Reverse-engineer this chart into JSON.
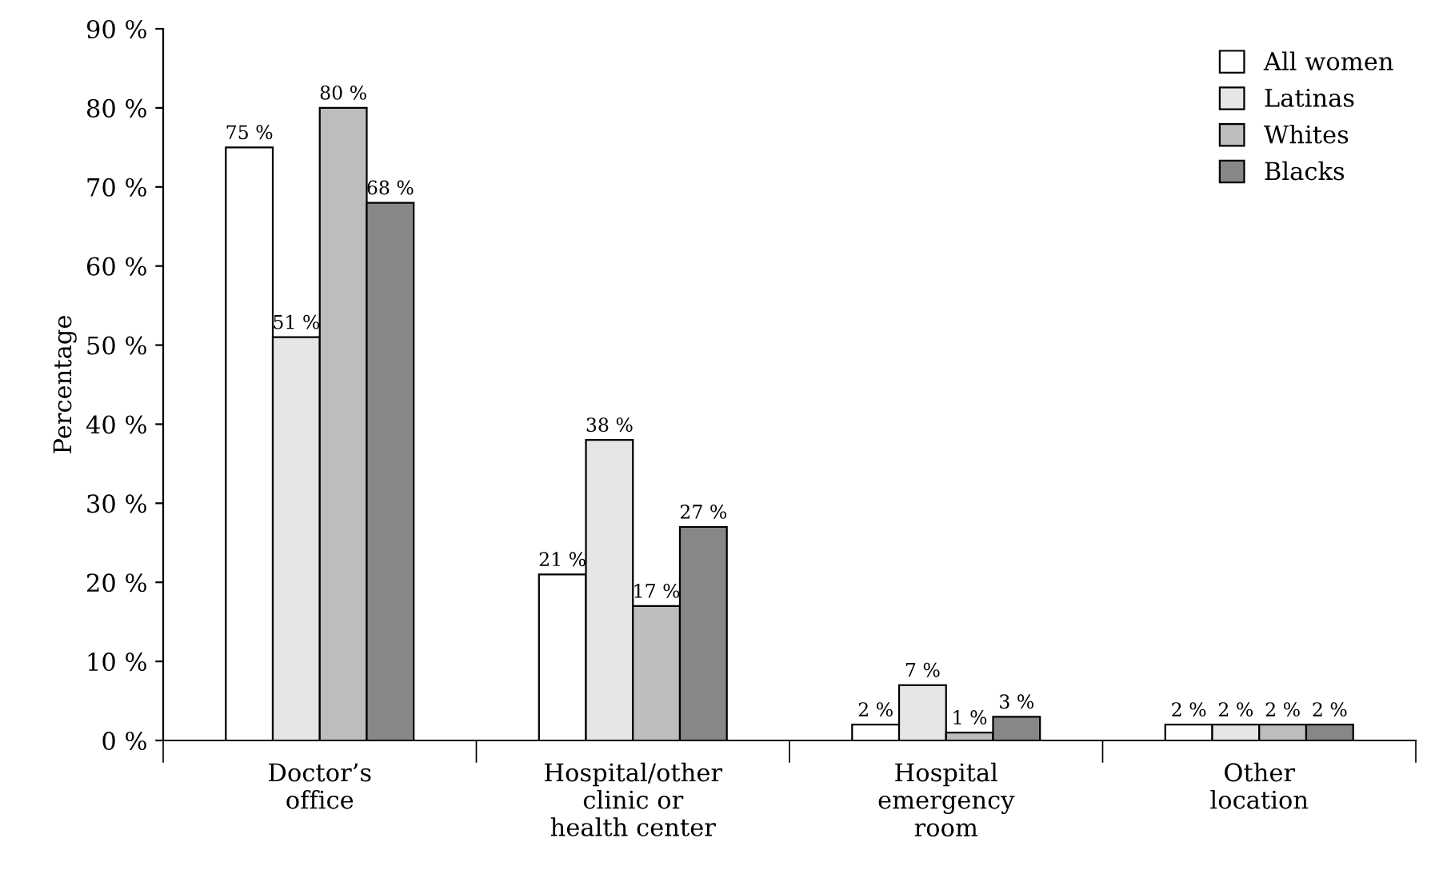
{
  "chart_data": {
    "type": "bar",
    "ylabel": "Percentage",
    "categories": [
      "Doctor’s\noffice",
      "Hospital/other\nclinic or\nhealth center",
      "Hospital\nemergency\nroom",
      "Other\nlocation"
    ],
    "series": [
      {
        "name": "All women",
        "color": "#ffffff",
        "values": [
          75,
          21,
          2,
          2
        ],
        "value_labels": [
          "75 %",
          "21 %",
          "2 %",
          "2 %"
        ]
      },
      {
        "name": "Latinas",
        "color": "#e6e6e6",
        "values": [
          51,
          38,
          7,
          2
        ],
        "value_labels": [
          "51 %",
          "38 %",
          "7 %",
          "2 %"
        ]
      },
      {
        "name": "Whites",
        "color": "#bdbdbd",
        "values": [
          80,
          17,
          1,
          2
        ],
        "value_labels": [
          "80 %",
          "17 %",
          "1 %",
          "2 %"
        ]
      },
      {
        "name": "Blacks",
        "color": "#878787",
        "values": [
          68,
          27,
          3,
          2
        ],
        "value_labels": [
          "68 %",
          "27 %",
          "3 %",
          "2 %"
        ]
      }
    ],
    "ylim": [
      0,
      90
    ],
    "yticks": [
      {
        "value": 0,
        "label": "0 %"
      },
      {
        "value": 10,
        "label": "10 %"
      },
      {
        "value": 20,
        "label": "20 %"
      },
      {
        "value": 30,
        "label": "30 %"
      },
      {
        "value": 40,
        "label": "40 %"
      },
      {
        "value": 50,
        "label": "50 %"
      },
      {
        "value": 60,
        "label": "60 %"
      },
      {
        "value": 70,
        "label": "70 %"
      },
      {
        "value": 80,
        "label": "80 %"
      },
      {
        "value": 90,
        "label": "90 %"
      }
    ],
    "grid": false,
    "legend": "top right"
  }
}
